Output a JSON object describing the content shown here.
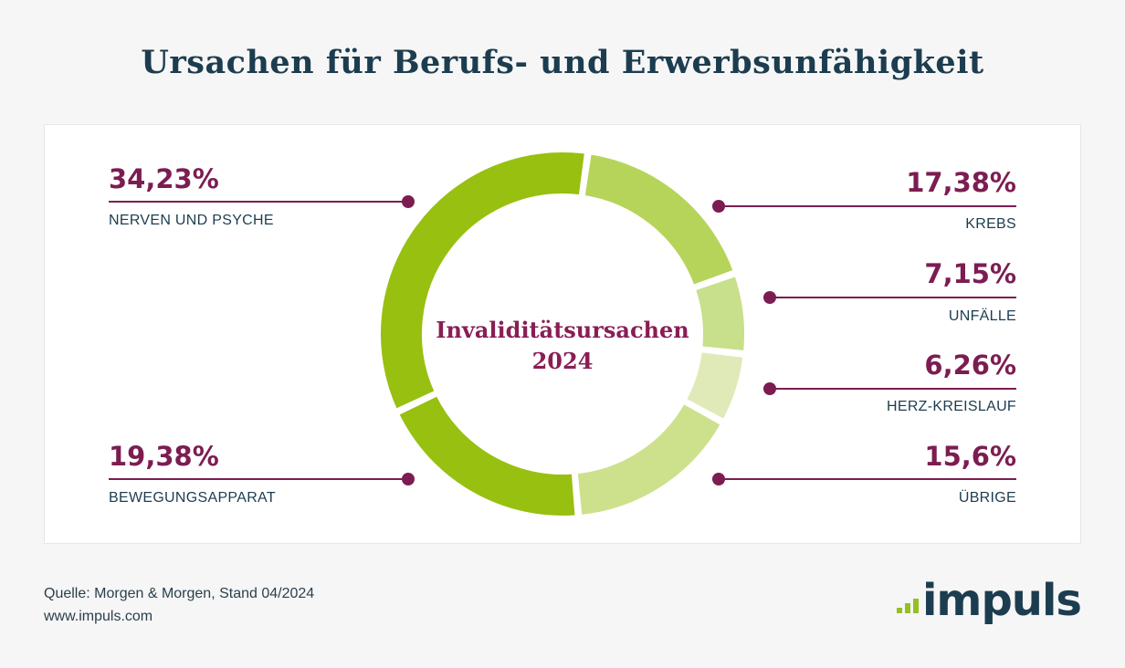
{
  "title": "Ursachen für Berufs- und Erwerbsunfähigkeit",
  "center_label": {
    "line1": "Invaliditätsursachen",
    "line2": "2024"
  },
  "footer": {
    "source": "Quelle: Morgen & Morgen, Stand 04/2024",
    "url": "www.impuls.com"
  },
  "logo": {
    "text": "impuls",
    "bar_color": "#94c11f",
    "text_color": "#1c3d4f"
  },
  "colors": {
    "accent": "#7c1d52",
    "title": "#1c3d4f"
  },
  "chart_data": {
    "type": "pie",
    "variant": "donut",
    "title": "Ursachen für Berufs- und Erwerbsunfähigkeit",
    "slices": [
      {
        "label": "NERVEN UND PSYCHE",
        "value": 34.23,
        "display": "34,23%",
        "color": "#98c010",
        "side": "left"
      },
      {
        "label": "KREBS",
        "value": 17.38,
        "display": "17,38%",
        "color": "#b6d45a",
        "side": "right"
      },
      {
        "label": "UNFÄLLE",
        "value": 7.15,
        "display": "7,15%",
        "color": "#c8df8c",
        "side": "right"
      },
      {
        "label": "HERZ-KREISLAUF",
        "value": 6.26,
        "display": "6,26%",
        "color": "#dfeab8",
        "side": "right"
      },
      {
        "label": "ÜBRIGE",
        "value": 15.6,
        "display": "15,6%",
        "color": "#cde18d",
        "side": "right"
      },
      {
        "label": "BEWEGUNGSAPPARAT",
        "value": 19.38,
        "display": "19,38%",
        "color": "#98c010",
        "side": "left"
      }
    ]
  }
}
